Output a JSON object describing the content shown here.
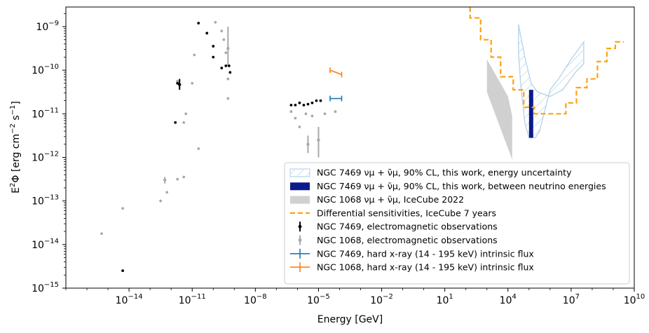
{
  "chart_data": {
    "type": "scatter",
    "xlabel": "Energy [GeV]",
    "ylabel_parts": {
      "lead": "E",
      "sup": "2",
      "phi": "Φ",
      "units": "[erg cm",
      "m2": "−2",
      "s": " s",
      "m1": "−1",
      "close": "]"
    },
    "xscale": "log",
    "yscale": "log",
    "xlim_log10": [
      -17,
      10
    ],
    "ylim_log10": [
      -15,
      -8.55
    ],
    "x_ticks": [
      {
        "base": "10",
        "exp": "−14",
        "log": -14
      },
      {
        "base": "10",
        "exp": "−11",
        "log": -11
      },
      {
        "base": "10",
        "exp": "−8",
        "log": -8
      },
      {
        "base": "10",
        "exp": "−5",
        "log": -5
      },
      {
        "base": "10",
        "exp": "−2",
        "log": -2
      },
      {
        "base": "10",
        "exp": "1",
        "log": 1
      },
      {
        "base": "10",
        "exp": "4",
        "log": 4
      },
      {
        "base": "10",
        "exp": "7",
        "log": 7
      },
      {
        "base": "10",
        "exp": "10",
        "log": 10
      }
    ],
    "y_ticks": [
      {
        "base": "10",
        "exp": "−15",
        "log": -15
      },
      {
        "base": "10",
        "exp": "−14",
        "log": -14
      },
      {
        "base": "10",
        "exp": "−13",
        "log": -13
      },
      {
        "base": "10",
        "exp": "−12",
        "log": -12
      },
      {
        "base": "10",
        "exp": "−11",
        "log": -11
      },
      {
        "base": "10",
        "exp": "−10",
        "log": -10
      },
      {
        "base": "10",
        "exp": "−9",
        "log": -9
      }
    ],
    "colors": {
      "ngc7469_band": "#b8d4ea",
      "ngc7469_solid": "#0b1a8c",
      "ngc1068_band": "#d0d0d0",
      "sensitivity": "#ffa10e",
      "em7469": "#000000",
      "em1068": "#a9a9a9",
      "xray7469": "#1f77b4",
      "xray1068": "#ff7f0e"
    },
    "series": [
      {
        "name": "NGC 7469 electromagnetic observations",
        "points": [
          [
            -14.3,
            -14.6
          ],
          [
            -10.7,
            -8.92
          ],
          [
            -10.3,
            -9.15
          ],
          [
            -10.0,
            -9.45
          ],
          [
            -10.0,
            -9.7
          ],
          [
            -9.6,
            -9.95
          ],
          [
            -9.4,
            -9.9
          ],
          [
            -9.25,
            -9.9
          ],
          [
            -9.2,
            -10.05
          ],
          [
            -11.7,
            -10.3
          ],
          [
            -11.8,
            -11.2
          ],
          [
            -6.3,
            -10.8
          ],
          [
            -6.1,
            -10.8
          ],
          [
            -5.9,
            -10.75
          ],
          [
            -5.7,
            -10.8
          ],
          [
            -5.5,
            -10.78
          ],
          [
            -5.3,
            -10.75
          ],
          [
            -5.1,
            -10.7
          ],
          [
            -4.9,
            -10.7
          ]
        ],
        "errbars": [
          [
            -11.6,
            -10.45,
            -10.2,
            -10.33
          ]
        ]
      },
      {
        "name": "NGC 1068 electromagnetic observations",
        "points": [
          [
            -15.3,
            -13.75
          ],
          [
            -14.3,
            -13.17
          ],
          [
            -12.5,
            -13.0
          ],
          [
            -12.2,
            -12.8
          ],
          [
            -11.7,
            -12.5
          ],
          [
            -11.4,
            -12.45
          ],
          [
            -11.3,
            -11.0
          ],
          [
            -11.0,
            -10.3
          ],
          [
            -10.9,
            -9.65
          ],
          [
            -10.7,
            -11.8
          ],
          [
            -9.9,
            -8.9
          ],
          [
            -9.6,
            -9.1
          ],
          [
            -9.5,
            -9.3
          ],
          [
            -9.4,
            -9.6
          ],
          [
            -9.3,
            -10.2
          ],
          [
            -9.3,
            -10.65
          ],
          [
            -11.7,
            -10.25
          ],
          [
            -6.3,
            -10.95
          ],
          [
            -6.1,
            -11.1
          ],
          [
            -5.9,
            -11.3
          ],
          [
            -5.6,
            -11.0
          ],
          [
            -5.3,
            -11.05
          ],
          [
            -4.7,
            -11.0
          ],
          [
            -4.2,
            -10.95
          ],
          [
            -11.4,
            -11.2
          ]
        ],
        "errbars": [
          [
            -12.3,
            -12.6,
            -12.45,
            -12.52
          ],
          [
            -9.3,
            -9.9,
            -9.0,
            -9.5
          ],
          [
            -5.5,
            -11.9,
            -11.5,
            -11.7
          ],
          [
            -5.0,
            -12.0,
            -11.3,
            -11.6
          ]
        ]
      },
      {
        "name": "NGC 7469 hard x-ray (14 - 195 keV) intrinsic flux",
        "line": [
          [
            -4.45,
            -10.65
          ],
          [
            -3.9,
            -10.65
          ]
        ]
      },
      {
        "name": "NGC 1068 hard x-ray (14 - 195 keV) intrinsic flux",
        "line": [
          [
            -4.45,
            -10.0
          ],
          [
            -3.9,
            -10.1
          ]
        ]
      },
      {
        "name": "Differential sensitivities, IceCube 7 years",
        "step": [
          [
            2.2,
            -8.55
          ],
          [
            2.2,
            -8.8
          ],
          [
            2.7,
            -8.8
          ],
          [
            2.7,
            -9.3
          ],
          [
            3.2,
            -9.3
          ],
          [
            3.2,
            -9.7
          ],
          [
            3.65,
            -9.7
          ],
          [
            3.65,
            -10.15
          ],
          [
            4.25,
            -10.15
          ],
          [
            4.25,
            -10.45
          ],
          [
            4.75,
            -10.45
          ],
          [
            4.75,
            -10.85
          ],
          [
            5.25,
            -10.85
          ],
          [
            5.25,
            -11.0
          ],
          [
            6.75,
            -11.0
          ],
          [
            6.75,
            -10.75
          ],
          [
            7.25,
            -10.75
          ],
          [
            7.25,
            -10.4
          ],
          [
            7.75,
            -10.4
          ],
          [
            7.75,
            -10.2
          ],
          [
            8.25,
            -10.2
          ],
          [
            8.25,
            -9.8
          ],
          [
            8.7,
            -9.8
          ],
          [
            8.7,
            -9.5
          ],
          [
            9.1,
            -9.5
          ],
          [
            9.1,
            -9.35
          ],
          [
            9.5,
            -9.35
          ]
        ]
      },
      {
        "name": "NGC 1068 nu band IceCube 2022",
        "polygon": [
          [
            3.0,
            -9.75
          ],
          [
            4.0,
            -10.6
          ],
          [
            4.2,
            -11.05
          ],
          [
            4.2,
            -12.05
          ],
          [
            3.0,
            -10.5
          ]
        ]
      },
      {
        "name": "NGC 7469 band energy uncertainty",
        "polygon": [
          [
            4.5,
            -8.95
          ],
          [
            4.8,
            -9.7
          ],
          [
            5.1,
            -10.3
          ],
          [
            5.4,
            -10.5
          ],
          [
            6.0,
            -10.6
          ],
          [
            6.6,
            -10.45
          ],
          [
            7.2,
            -10.05
          ],
          [
            7.6,
            -9.85
          ],
          [
            7.6,
            -9.35
          ],
          [
            7.0,
            -9.75
          ],
          [
            6.4,
            -10.2
          ],
          [
            6.0,
            -10.45
          ],
          [
            5.5,
            -11.4
          ],
          [
            5.3,
            -11.55
          ],
          [
            5.0,
            -11.55
          ],
          [
            4.8,
            -11.2
          ],
          [
            4.6,
            -10.3
          ],
          [
            4.5,
            -9.6
          ]
        ]
      },
      {
        "name": "NGC 7469 band between neutrino energies",
        "rect": [
          5.0,
          5.2,
          -11.55,
          -10.45
        ]
      }
    ],
    "legend": [
      {
        "label": "NGC 7469 νμ + ν̄μ, 90% CL, this work, energy uncertainty",
        "kind": "hatch"
      },
      {
        "label": "NGC 7469 νμ + ν̄μ, 90% CL, this work, between neutrino energies",
        "kind": "solid"
      },
      {
        "label": "NGC 1068 νμ + ν̄μ, IceCube 2022",
        "kind": "gray"
      },
      {
        "label": "Differential sensitivities, IceCube 7 years",
        "kind": "dash"
      },
      {
        "label": "NGC 7469, electromagnetic observations",
        "kind": "em7469"
      },
      {
        "label": "NGC 1068, electromagnetic observations",
        "kind": "em1068"
      },
      {
        "label": "NGC 7469, hard x-ray (14 - 195 keV) intrinsic flux",
        "kind": "x7469"
      },
      {
        "label": "NGC 1068, hard x-ray (14 - 195 keV) intrinsic flux",
        "kind": "x1068"
      }
    ],
    "legend_position": "lower-right"
  }
}
